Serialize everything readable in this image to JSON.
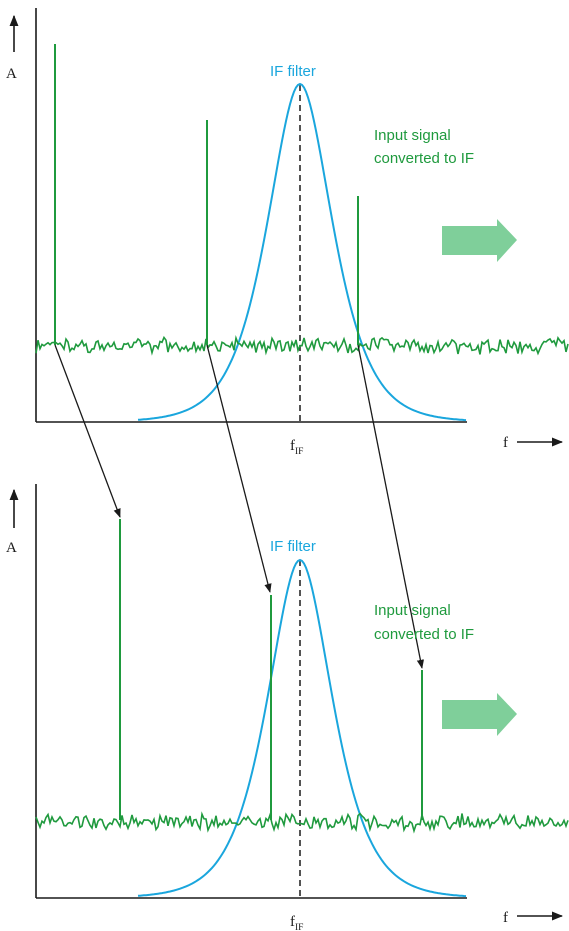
{
  "colors": {
    "signal": "#1f9a3e",
    "filter": "#1aa6dd",
    "arrow_fill": "#7fcf9a",
    "axis": "#1a1a1a"
  },
  "panels": [
    {
      "amplitude_label": "A",
      "frequency_label": "f",
      "fif_main": "f",
      "fif_sub": "IF",
      "filter_label": "IF filter",
      "signal_label_line1": "Input signal",
      "signal_label_line2": "converted to IF"
    },
    {
      "amplitude_label": "A",
      "frequency_label": "f",
      "fif_main": "f",
      "fif_sub": "IF",
      "filter_label": "IF filter",
      "signal_label_line1": "Input signal",
      "signal_label_line2": "converted to IF"
    }
  ]
}
